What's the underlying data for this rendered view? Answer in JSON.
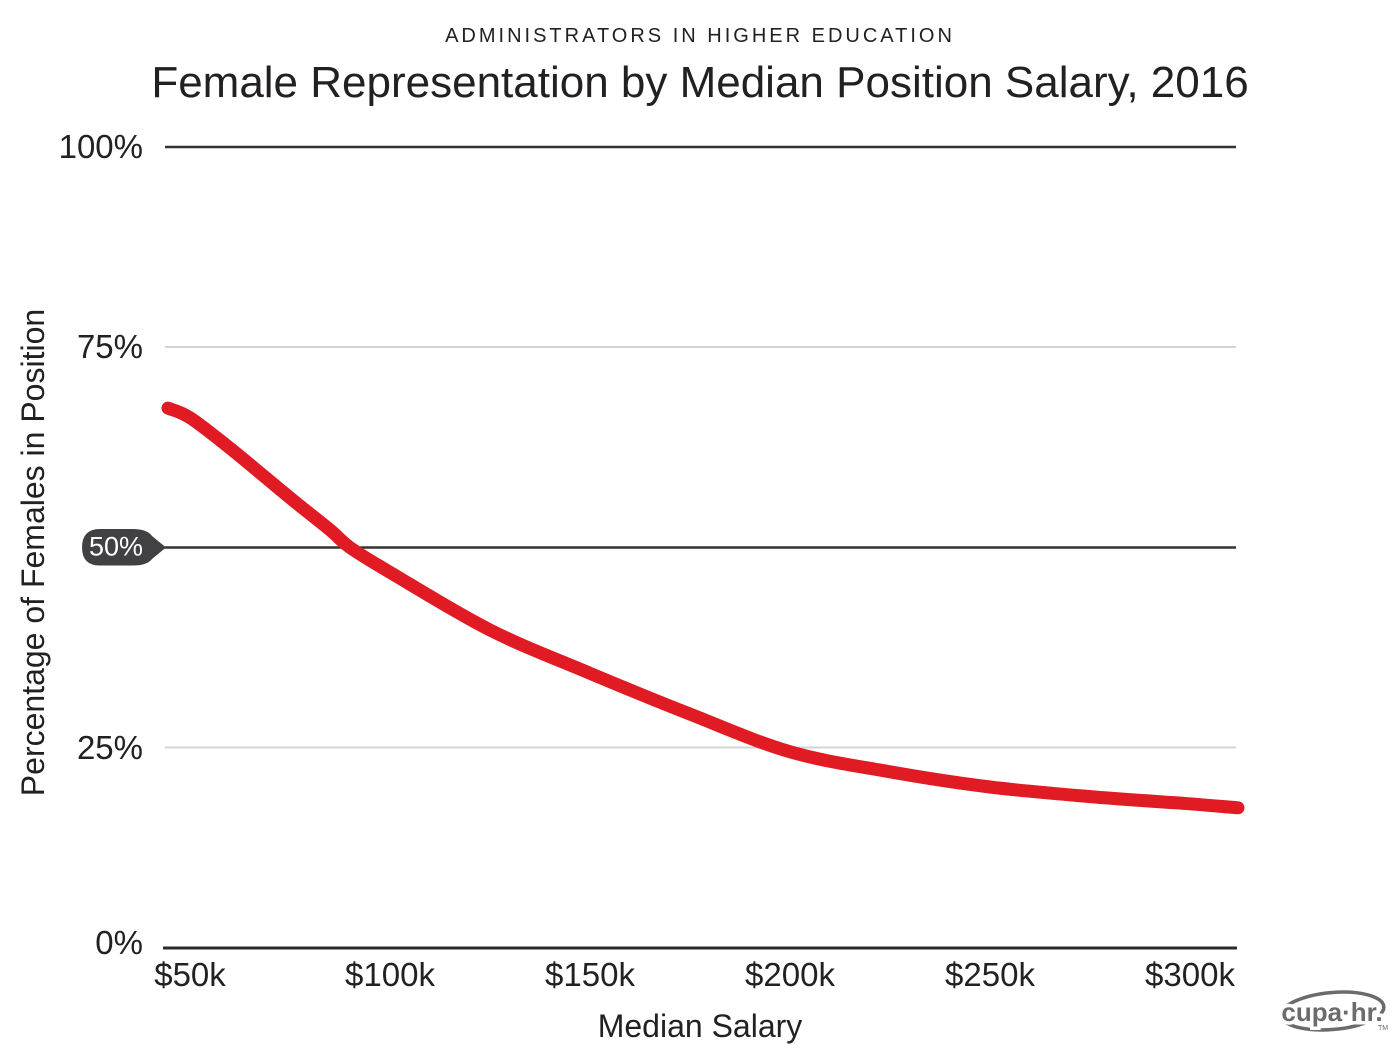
{
  "header": {
    "kicker": "ADMINISTRATORS IN HIGHER EDUCATION",
    "title": "Female Representation by Median Position Salary, 2016"
  },
  "chart_data": {
    "type": "line",
    "title": "Female Representation by Median Position Salary, 2016",
    "subtitle": "ADMINISTRATORS IN HIGHER EDUCATION",
    "xlabel": "Median Salary",
    "ylabel": "Percentage of Females in Position",
    "x_unit": "salary in thousands of dollars",
    "y_unit": "percent",
    "xlim_k": [
      44.5,
      312
    ],
    "ylim": [
      0,
      100
    ],
    "grid": "horizontal",
    "legend": "none",
    "xticks": [
      {
        "label": "$50k",
        "value": 50
      },
      {
        "label": "$100k",
        "value": 100
      },
      {
        "label": "$150k",
        "value": 150
      },
      {
        "label": "$200k",
        "value": 200
      },
      {
        "label": "$250k",
        "value": 250
      },
      {
        "label": "$300k",
        "value": 300
      }
    ],
    "yticks": [
      {
        "label": "100%",
        "value": 100,
        "emphasis": "dark"
      },
      {
        "label": "75%",
        "value": 75,
        "emphasis": "light"
      },
      {
        "label": "50%",
        "value": 50,
        "emphasis": "callout"
      },
      {
        "label": "25%",
        "value": 25,
        "emphasis": "light"
      },
      {
        "label": "0%",
        "value": 0,
        "emphasis": "axis"
      }
    ],
    "annotations": [
      {
        "type": "reference-line",
        "value": 50,
        "label": "50%",
        "style": "dark line with label pill"
      }
    ],
    "series": [
      {
        "name": "Percentage of Females in Position",
        "color": "#e01b24",
        "points_salary_k_vs_pct": [
          [
            44.5,
            67.4
          ],
          [
            50,
            66.2
          ],
          [
            60,
            62.4
          ],
          [
            75,
            56.2
          ],
          [
            85,
            52.2
          ],
          [
            90,
            50.0
          ],
          [
            100,
            46.9
          ],
          [
            125,
            39.7
          ],
          [
            150,
            34.3
          ],
          [
            175,
            29.2
          ],
          [
            200,
            24.5
          ],
          [
            225,
            22.0
          ],
          [
            250,
            20.1
          ],
          [
            275,
            18.9
          ],
          [
            300,
            18.0
          ],
          [
            312,
            17.5
          ]
        ]
      }
    ]
  },
  "footer": {
    "logo_text": "cupa·hr.",
    "logo_tm": "TM"
  },
  "colors": {
    "line_red": "#e01b24",
    "callout_bg": "#414042",
    "grid_light": "#d4d4d4",
    "grid_dark": "#333333",
    "axis_dark": "#2a2a2a",
    "text": "#232020",
    "logo_gray": "#6b6b6b"
  }
}
